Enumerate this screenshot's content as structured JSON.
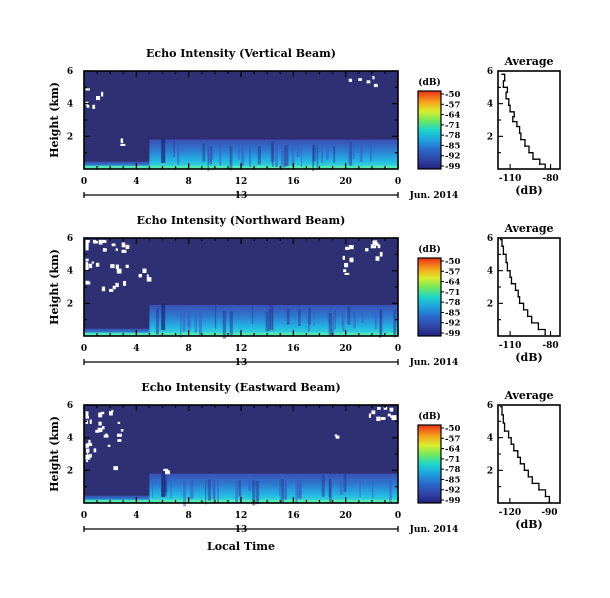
{
  "chart_data": [
    {
      "type": "heatmap",
      "title": "Echo Intensity (Vertical Beam)",
      "ylabel": "Height (km)",
      "y_ticks": [
        "2",
        "4",
        "6"
      ],
      "x_ticks": [
        "0",
        "4",
        "8",
        "12",
        "16",
        "20",
        "0"
      ],
      "xlim_hours": [
        0,
        24
      ],
      "ylim_km": [
        0,
        6
      ],
      "date_label": "13",
      "month_label": "Jun. 2014",
      "colorbar": {
        "unit": "(dB)",
        "ticks": [
          "-50",
          "-57",
          "-64",
          "-71",
          "-78",
          "-85",
          "-92",
          "-99"
        ],
        "range": [
          -99,
          -50
        ]
      },
      "boundary_height_km": 1.8,
      "noise_floor_db": -99,
      "surface_db": -78,
      "average_profile": {
        "title": "Average",
        "xlabel": "(dB)",
        "x_ticks": [
          "-110",
          "-80"
        ],
        "x_tick_values": [
          -110,
          -80
        ],
        "xlim": [
          -119,
          -73
        ],
        "y_ticks": [
          "2",
          "4",
          "6"
        ],
        "ylim": [
          0,
          6
        ],
        "points": [
          {
            "x": -84,
            "y": 0.1
          },
          {
            "x": -88,
            "y": 0.3
          },
          {
            "x": -93,
            "y": 0.6
          },
          {
            "x": -96,
            "y": 1.0
          },
          {
            "x": -99,
            "y": 1.4
          },
          {
            "x": -102,
            "y": 1.8
          },
          {
            "x": -103,
            "y": 2.2
          },
          {
            "x": -105,
            "y": 2.6
          },
          {
            "x": -108,
            "y": 2.9
          },
          {
            "x": -107,
            "y": 3.2
          },
          {
            "x": -110,
            "y": 3.5
          },
          {
            "x": -111,
            "y": 3.9
          },
          {
            "x": -113,
            "y": 4.3
          },
          {
            "x": -112,
            "y": 4.7
          },
          {
            "x": -115,
            "y": 5.0
          },
          {
            "x": -114,
            "y": 5.4
          },
          {
            "x": -116,
            "y": 5.8
          }
        ]
      }
    },
    {
      "type": "heatmap",
      "title": "Echo Intensity (Northward Beam)",
      "ylabel": "Height (km)",
      "y_ticks": [
        "2",
        "4",
        "6"
      ],
      "x_ticks": [
        "0",
        "4",
        "8",
        "12",
        "16",
        "20",
        "0"
      ],
      "xlim_hours": [
        0,
        24
      ],
      "ylim_km": [
        0,
        6
      ],
      "date_label": "13",
      "month_label": "Jun. 2014",
      "colorbar": {
        "unit": "(dB)",
        "ticks": [
          "-50",
          "-57",
          "-64",
          "-71",
          "-78",
          "-85",
          "-92",
          "-99"
        ],
        "range": [
          -99,
          -50
        ]
      },
      "boundary_height_km": 1.9,
      "noise_floor_db": -99,
      "surface_db": -78,
      "average_profile": {
        "title": "Average",
        "xlabel": "(dB)",
        "x_ticks": [
          "-110",
          "-80"
        ],
        "x_tick_values": [
          -110,
          -80
        ],
        "xlim": [
          -119,
          -73
        ],
        "y_ticks": [
          "2",
          "4",
          "6"
        ],
        "ylim": [
          0,
          6
        ],
        "points": [
          {
            "x": -84,
            "y": 0.1
          },
          {
            "x": -89,
            "y": 0.4
          },
          {
            "x": -94,
            "y": 0.8
          },
          {
            "x": -97,
            "y": 1.2
          },
          {
            "x": -100,
            "y": 1.6
          },
          {
            "x": -103,
            "y": 2.0
          },
          {
            "x": -104,
            "y": 2.4
          },
          {
            "x": -106,
            "y": 2.8
          },
          {
            "x": -109,
            "y": 3.2
          },
          {
            "x": -110,
            "y": 3.6
          },
          {
            "x": -112,
            "y": 4.0
          },
          {
            "x": -113,
            "y": 4.5
          },
          {
            "x": -115,
            "y": 5.0
          },
          {
            "x": -116,
            "y": 5.5
          },
          {
            "x": -117,
            "y": 5.9
          }
        ]
      }
    },
    {
      "type": "heatmap",
      "title": "Echo Intensity (Eastward Beam)",
      "ylabel": "Height (km)",
      "y_ticks": [
        "2",
        "4",
        "6"
      ],
      "x_ticks": [
        "0",
        "4",
        "8",
        "12",
        "16",
        "20",
        "0"
      ],
      "xlim_hours": [
        0,
        24
      ],
      "ylim_km": [
        0,
        6
      ],
      "date_label": "13",
      "month_label": "Jun. 2014",
      "xlabel": "Local Time",
      "colorbar": {
        "unit": "(dB)",
        "ticks": [
          "-50",
          "-57",
          "-64",
          "-71",
          "-78",
          "-85",
          "-92",
          "-99"
        ],
        "range": [
          -99,
          -50
        ]
      },
      "boundary_height_km": 1.8,
      "noise_floor_db": -99,
      "surface_db": -78,
      "average_profile": {
        "title": "Average",
        "xlabel": "(dB)",
        "x_ticks": [
          "-120",
          "-90"
        ],
        "x_tick_values": [
          -120,
          -90
        ],
        "xlim": [
          -129,
          -82
        ],
        "y_ticks": [
          "2",
          "4",
          "6"
        ],
        "ylim": [
          0,
          6
        ],
        "points": [
          {
            "x": -90,
            "y": 0.1
          },
          {
            "x": -93,
            "y": 0.4
          },
          {
            "x": -98,
            "y": 0.8
          },
          {
            "x": -103,
            "y": 1.2
          },
          {
            "x": -106,
            "y": 1.6
          },
          {
            "x": -109,
            "y": 2.0
          },
          {
            "x": -112,
            "y": 2.4
          },
          {
            "x": -114,
            "y": 2.8
          },
          {
            "x": -117,
            "y": 3.2
          },
          {
            "x": -119,
            "y": 3.6
          },
          {
            "x": -121,
            "y": 4.0
          },
          {
            "x": -124,
            "y": 4.4
          },
          {
            "x": -125,
            "y": 4.9
          },
          {
            "x": -126,
            "y": 5.4
          },
          {
            "x": -127,
            "y": 5.9
          }
        ]
      }
    }
  ]
}
